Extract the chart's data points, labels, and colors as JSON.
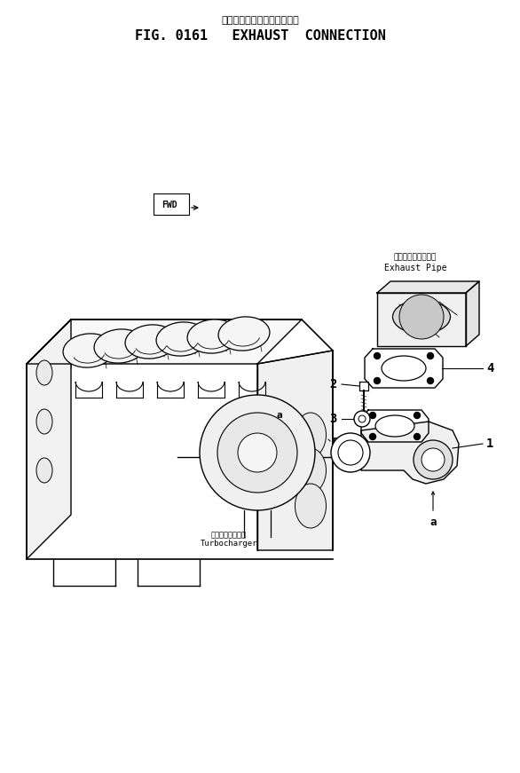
{
  "title_jp": "エキゾースト　コネクション",
  "title_en": "FIG. 0161   EXHAUST  CONNECTION",
  "background_color": "#ffffff",
  "text_color": "#000000",
  "fig_width": 5.86,
  "fig_height": 8.71,
  "exhaust_pipe_jp": "エキゾーストパイプ",
  "exhaust_pipe_en": "Exhaust Pipe",
  "turbocharger_jp": "ターボチャージャ",
  "turbocharger_en": "Turbocharger",
  "fwd": "FWD"
}
